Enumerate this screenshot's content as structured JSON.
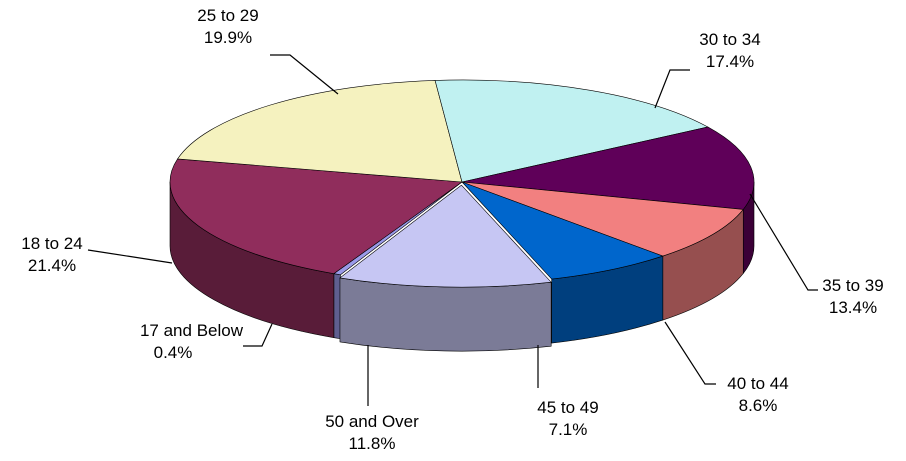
{
  "chart_data": {
    "type": "pie",
    "title": "",
    "style": "3d-exploded-pie",
    "legend": "none",
    "slices": [
      {
        "label": "17 and Below",
        "percent_label": "0.4%",
        "value": 0.4,
        "color": "#9a9ae8"
      },
      {
        "label": "18 to 24",
        "percent_label": "21.4%",
        "value": 21.4,
        "color": "#902d5c"
      },
      {
        "label": "25 to 29",
        "percent_label": "19.9%",
        "value": 19.9,
        "color": "#f5f2bf"
      },
      {
        "label": "30 to 34",
        "percent_label": "17.4%",
        "value": 17.4,
        "color": "#c0f1f1"
      },
      {
        "label": "35 to 39",
        "percent_label": "13.4%",
        "value": 13.4,
        "color": "#5f0059"
      },
      {
        "label": "40 to 44",
        "percent_label": "8.6%",
        "value": 8.6,
        "color": "#f28080"
      },
      {
        "label": "45 to 49",
        "percent_label": "7.1%",
        "value": 7.1,
        "color": "#0066cc"
      },
      {
        "label": "50 and Over",
        "percent_label": "11.8%",
        "value": 11.8,
        "color": "#c6c6f3"
      }
    ]
  }
}
